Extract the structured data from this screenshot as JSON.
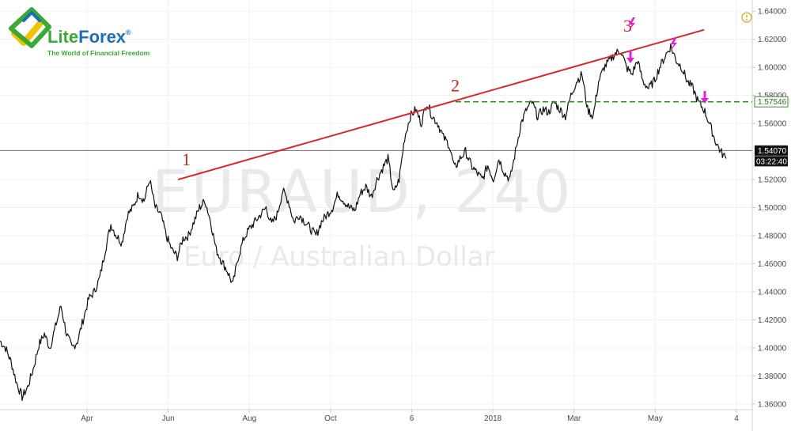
{
  "brand": {
    "name_part1": "Lite",
    "name_part2": "Forex",
    "registered": "®",
    "tagline": "The World of Financial Freedom",
    "colors": {
      "green": "#3aa935",
      "blue": "#1d6fb8",
      "yellow": "#f2c200"
    }
  },
  "watermark": {
    "symbol": "EURAUD, 240",
    "description": "Euro / Australian Dollar"
  },
  "info_icon": "info-circle-icon",
  "chart_data": {
    "type": "line",
    "symbol": "EURAUD",
    "interval": "240",
    "description": "Euro / Australian Dollar",
    "x_tick_labels": [
      "Apr",
      "Jun",
      "Aug",
      "Oct",
      "6",
      "2018",
      "Mar",
      "May",
      "4"
    ],
    "y_tick_labels": [
      "1.64000",
      "1.62000",
      "1.60000",
      "1.58000",
      "1.56000",
      "1.52000",
      "1.50000",
      "1.48000",
      "1.46000",
      "1.44000",
      "1.42000",
      "1.40000",
      "1.38000",
      "1.36000"
    ],
    "ylim": [
      1.356,
      1.648
    ],
    "grid": true,
    "series": [
      {
        "color": "#111111",
        "values": [
          1.405,
          1.4,
          1.39,
          1.375,
          1.365,
          1.372,
          1.385,
          1.402,
          1.41,
          1.4,
          1.415,
          1.43,
          1.41,
          1.4,
          1.405,
          1.42,
          1.435,
          1.44,
          1.45,
          1.47,
          1.488,
          1.48,
          1.475,
          1.495,
          1.5,
          1.51,
          1.505,
          1.52,
          1.5,
          1.495,
          1.48,
          1.47,
          1.465,
          1.478,
          1.48,
          1.49,
          1.5,
          1.505,
          1.49,
          1.47,
          1.462,
          1.455,
          1.445,
          1.465,
          1.478,
          1.485,
          1.49,
          1.495,
          1.5,
          1.488,
          1.495,
          1.512,
          1.505,
          1.49,
          1.495,
          1.49,
          1.485,
          1.48,
          1.49,
          1.495,
          1.5,
          1.51,
          1.505,
          1.5,
          1.498,
          1.51,
          1.515,
          1.508,
          1.52,
          1.528,
          1.535,
          1.51,
          1.52,
          1.55,
          1.565,
          1.57,
          1.56,
          1.575,
          1.565,
          1.56,
          1.55,
          1.545,
          1.528,
          1.535,
          1.54,
          1.53,
          1.525,
          1.52,
          1.53,
          1.52,
          1.535,
          1.525,
          1.52,
          1.54,
          1.56,
          1.57,
          1.575,
          1.565,
          1.57,
          1.568,
          1.575,
          1.57,
          1.565,
          1.58,
          1.59,
          1.595,
          1.57,
          1.565,
          1.59,
          1.6,
          1.605,
          1.61,
          1.612,
          1.6,
          1.595,
          1.605,
          1.59,
          1.585,
          1.59,
          1.6,
          1.608,
          1.615,
          1.605,
          1.6,
          1.59,
          1.585,
          1.575,
          1.57,
          1.56,
          1.548,
          1.54,
          1.535
        ]
      }
    ],
    "current_price": "1.54070",
    "countdown": "03:22:40",
    "level_price": "1.57546",
    "points": [
      {
        "label": "1",
        "value": 1.52
      },
      {
        "label": "2",
        "value": 1.575
      },
      {
        "label": "3",
        "value": 1.612
      }
    ],
    "trendline_color": "#d42a2a",
    "level_line_color": "#3a8a2a",
    "marker_color": "#e020d8",
    "tag_color": "#111111",
    "level_tag_color": "#3a8a2a"
  }
}
